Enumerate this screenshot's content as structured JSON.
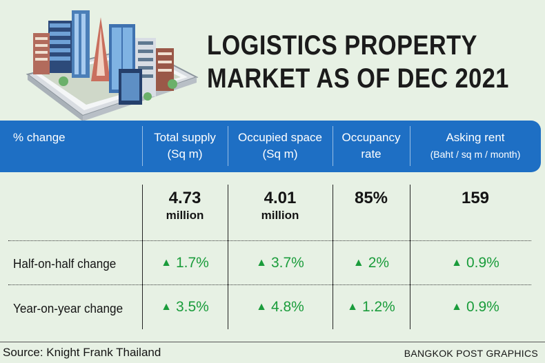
{
  "title": {
    "line1": "LOGISTICS PROPERTY",
    "line2": "MARKET AS OF DEC 2021"
  },
  "header": {
    "col0": "% change",
    "col1_l1": "Total supply",
    "col1_l2": "(Sq m)",
    "col2_l1": "Occupied space",
    "col2_l2": "(Sq m)",
    "col3_l1": "Occupancy",
    "col3_l2": "rate",
    "col4_l1": "Asking rent",
    "col4_l2": "(Baht / sq m / month)"
  },
  "values": {
    "total_supply": "4.73",
    "total_supply_unit": "million",
    "occupied_space": "4.01",
    "occupied_space_unit": "million",
    "occupancy_rate": "85%",
    "asking_rent": "159"
  },
  "rows": [
    {
      "label": "Half-on-half change",
      "total_supply": "1.7%",
      "occupied_space": "3.7%",
      "occupancy_rate": "2%",
      "asking_rent": "0.9%"
    },
    {
      "label": "Year-on-year change",
      "total_supply": "3.5%",
      "occupied_space": "4.8%",
      "occupancy_rate": "1.2%",
      "asking_rent": "0.9%"
    }
  ],
  "up_symbol": "▲",
  "footer": {
    "source": "Source: Knight Frank Thailand",
    "credit": "BANGKOK POST GRAPHICS"
  },
  "colors": {
    "background": "#e7f1e4",
    "header_band": "#1e6fc4",
    "increase": "#1a9c3b"
  },
  "icons": [
    "city-buildings-on-phone-illustration"
  ]
}
